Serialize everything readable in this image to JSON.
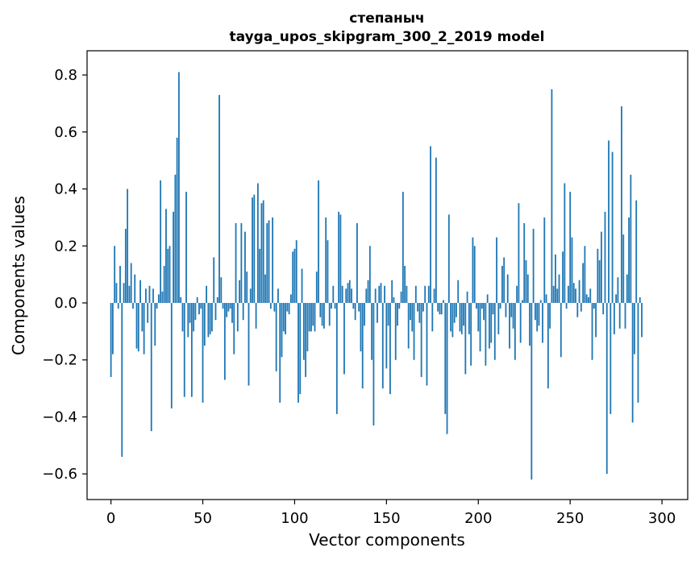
{
  "chart_data": {
    "type": "bar",
    "title_line1": "степаныч",
    "title_line2": "tayga_upos_skipgram_300_2_2019 model",
    "xlabel": "Vector components",
    "ylabel": "Components values",
    "xlim": [
      -13,
      314
    ],
    "ylim": [
      -0.69,
      0.885
    ],
    "xticks": [
      0,
      50,
      100,
      150,
      200,
      250,
      300
    ],
    "xtick_labels": [
      "0",
      "50",
      "100",
      "150",
      "200",
      "250",
      "300"
    ],
    "yticks": [
      -0.6,
      -0.4,
      -0.2,
      0.0,
      0.2,
      0.4,
      0.6,
      0.8
    ],
    "ytick_labels": [
      "−0.6",
      "−0.4",
      "−0.2",
      "0.0",
      "0.2",
      "0.4",
      "0.6",
      "0.8"
    ],
    "bar_color": "#1f77b4",
    "grid": false,
    "values": [
      -0.26,
      -0.18,
      0.2,
      0.07,
      -0.02,
      0.13,
      -0.54,
      0.07,
      0.26,
      0.4,
      0.06,
      0.14,
      -0.02,
      0.1,
      -0.16,
      -0.17,
      0.08,
      -0.1,
      -0.18,
      0.05,
      -0.07,
      0.06,
      -0.45,
      0.05,
      -0.15,
      -0.02,
      0.03,
      0.43,
      0.04,
      0.13,
      0.33,
      0.19,
      0.2,
      -0.37,
      0.32,
      0.45,
      0.58,
      0.81,
      0.02,
      -0.1,
      -0.33,
      0.39,
      -0.12,
      -0.07,
      -0.33,
      -0.1,
      -0.06,
      0.02,
      -0.04,
      -0.02,
      -0.35,
      -0.15,
      0.06,
      -0.12,
      -0.11,
      -0.1,
      0.16,
      -0.06,
      0.02,
      0.73,
      0.09,
      -0.02,
      -0.27,
      -0.05,
      -0.03,
      -0.02,
      -0.07,
      -0.18,
      0.28,
      -0.1,
      0.08,
      0.28,
      -0.06,
      0.25,
      0.11,
      -0.29,
      0.05,
      0.37,
      0.38,
      -0.09,
      0.42,
      0.19,
      0.35,
      0.36,
      0.1,
      0.28,
      0.29,
      -0.02,
      0.3,
      -0.03,
      -0.24,
      0.05,
      -0.35,
      -0.19,
      -0.1,
      -0.11,
      -0.03,
      -0.04,
      0.03,
      0.18,
      0.19,
      0.22,
      -0.35,
      -0.32,
      0.12,
      -0.2,
      -0.26,
      -0.17,
      -0.1,
      -0.1,
      -0.08,
      -0.1,
      0.11,
      0.43,
      -0.05,
      -0.08,
      -0.09,
      0.3,
      0.22,
      -0.08,
      -0.02,
      0.06,
      -0.02,
      -0.39,
      0.32,
      0.31,
      0.06,
      -0.25,
      0.05,
      0.07,
      0.08,
      0.05,
      -0.02,
      -0.06,
      0.28,
      -0.03,
      -0.17,
      -0.3,
      -0.08,
      0.05,
      0.08,
      0.2,
      -0.2,
      -0.43,
      0.05,
      -0.07,
      0.06,
      0.07,
      -0.3,
      0.06,
      -0.23,
      -0.08,
      -0.32,
      0.08,
      0.02,
      -0.2,
      -0.08,
      -0.02,
      0.04,
      0.39,
      0.13,
      0.06,
      -0.16,
      -0.06,
      -0.1,
      -0.2,
      0.06,
      -0.03,
      -0.07,
      -0.26,
      -0.03,
      0.06,
      -0.29,
      0.06,
      0.55,
      -0.1,
      0.05,
      0.51,
      -0.03,
      -0.04,
      -0.04,
      0.01,
      -0.39,
      -0.46,
      0.31,
      -0.1,
      -0.12,
      -0.07,
      -0.05,
      0.08,
      -0.1,
      -0.11,
      -0.08,
      -0.25,
      0.04,
      -0.11,
      -0.22,
      0.23,
      0.2,
      -0.02,
      -0.1,
      -0.17,
      -0.02,
      -0.06,
      -0.22,
      0.03,
      -0.16,
      -0.14,
      -0.04,
      -0.2,
      0.23,
      -0.11,
      -0.02,
      0.13,
      0.16,
      -0.05,
      0.1,
      -0.16,
      -0.05,
      -0.09,
      -0.2,
      0.06,
      0.35,
      -0.14,
      0.01,
      0.28,
      0.15,
      0.1,
      -0.15,
      -0.62,
      0.26,
      -0.06,
      -0.1,
      -0.08,
      0.01,
      -0.14,
      0.3,
      0.03,
      -0.3,
      -0.09,
      0.75,
      0.06,
      0.17,
      0.05,
      0.1,
      -0.19,
      0.18,
      0.42,
      -0.02,
      0.06,
      0.39,
      0.23,
      0.07,
      0.05,
      -0.05,
      0.08,
      -0.03,
      0.14,
      0.2,
      0.03,
      0.02,
      0.05,
      -0.2,
      -0.02,
      -0.12,
      0.19,
      0.15,
      0.25,
      -0.04,
      0.32,
      -0.6,
      0.57,
      -0.39,
      0.53,
      -0.11,
      0.03,
      0.09,
      -0.09,
      0.69,
      0.24,
      -0.09,
      0.1,
      0.3,
      0.45,
      -0.42,
      -0.18,
      0.36,
      -0.35,
      0.02,
      -0.12
    ]
  }
}
